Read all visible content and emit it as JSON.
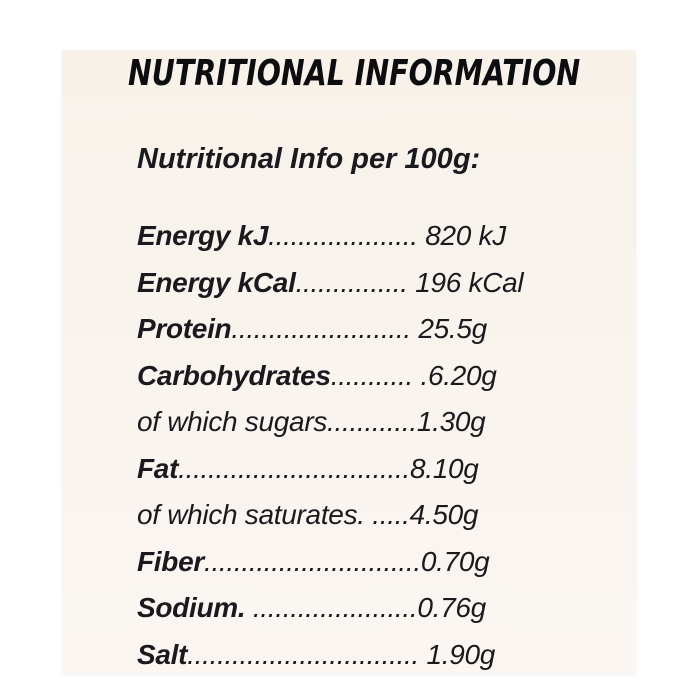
{
  "colors": {
    "page-bg": "#ffffff",
    "card-bg-top": "#f7f1ea",
    "card-bg-bottom": "#fbf6f2",
    "text": "#1a1a1e"
  },
  "card": {
    "title": "NUTRITIONAL INFORMATION",
    "subtitle": "Nutritional Info per 100g:"
  },
  "rows": [
    {
      "label": "Energy kJ",
      "dots": "....................",
      "value": " 820 kJ"
    },
    {
      "label": "Energy kCal",
      "dots": "...............",
      "value": " 196 kCal"
    },
    {
      "label": "Protein",
      "dots": "........................",
      "value": " 25.5g"
    },
    {
      "label": "Carbohydrates",
      "dots": "...........",
      "value": " .6.20g"
    },
    {
      "label": "of which sugars",
      "dots": "............",
      "value": "1.30g"
    },
    {
      "label": "Fat",
      "dots": "...............................",
      "value": "8.10g"
    },
    {
      "label": "of which saturates.",
      "dots": " .....",
      "value": "4.50g"
    },
    {
      "label": "Fiber",
      "dots": ".............................",
      "value": "0.70g"
    },
    {
      "label": "Sodium.",
      "dots": " ......................",
      "value": "0.76g"
    },
    {
      "label": "Salt",
      "dots": "...............................",
      "value": " 1.90g"
    }
  ]
}
